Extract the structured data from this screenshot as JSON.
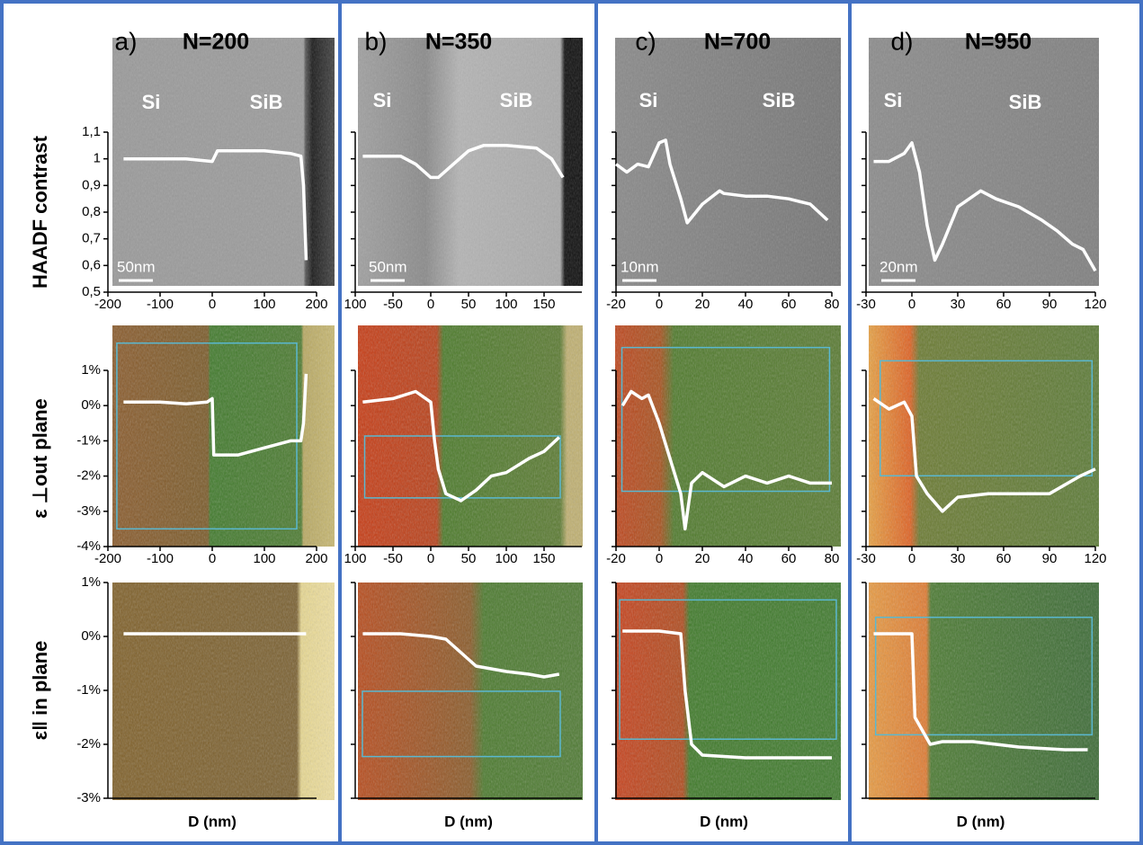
{
  "chart_data": [
    {
      "type": "line",
      "panel_label": "a)",
      "title": "N=200",
      "ylabel": "HAADF contrast",
      "annotations": [
        "Si",
        "SiB",
        "50nm"
      ],
      "color": "#ffffff",
      "xlim": [
        -200,
        200
      ],
      "xticks": [
        -200,
        -100,
        0,
        100,
        200
      ],
      "ylim": [
        0.5,
        1.1
      ],
      "yticks": [
        {
          "value": 0.5,
          "label": "0,5"
        },
        {
          "value": 0.6,
          "label": "0,6"
        },
        {
          "value": 0.7,
          "label": "0,7"
        },
        {
          "value": 0.8,
          "label": "0,8"
        },
        {
          "value": 0.9,
          "label": "0,9"
        },
        1,
        {
          "value": 1.1,
          "label": "1,1"
        }
      ],
      "x": [
        -170,
        -100,
        -50,
        0,
        10,
        50,
        100,
        150,
        170,
        175,
        180
      ],
      "values": [
        1.0,
        1.0,
        1.0,
        0.99,
        1.03,
        1.03,
        1.03,
        1.02,
        1.01,
        0.9,
        0.62
      ]
    },
    {
      "type": "line",
      "panel_label": "b)",
      "title": "N=350",
      "annotations": [
        "Si",
        "SiB",
        "50nm"
      ],
      "color": "#ffffff",
      "xlim": [
        -100,
        200
      ],
      "xticks": [
        {
          "value": -100,
          "label": "100"
        },
        -50,
        0,
        50,
        100,
        150
      ],
      "ylim": [
        0.5,
        1.1
      ],
      "yticks": [
        0.5,
        0.6,
        0.7,
        0.8,
        0.9,
        1,
        1.1
      ],
      "show_ytick_labels": false,
      "x": [
        -90,
        -40,
        -20,
        0,
        10,
        30,
        50,
        70,
        100,
        140,
        160,
        175
      ],
      "values": [
        1.01,
        1.01,
        0.98,
        0.93,
        0.93,
        0.98,
        1.03,
        1.05,
        1.05,
        1.04,
        1.0,
        0.93
      ]
    },
    {
      "type": "line",
      "panel_label": "c)",
      "title": "N=700",
      "annotations": [
        "Si",
        "SiB",
        "10nm"
      ],
      "color": "#ffffff",
      "xlim": [
        -20,
        80
      ],
      "xticks": [
        -20,
        0,
        20,
        40,
        60,
        80
      ],
      "ylim": [
        0.5,
        1.1
      ],
      "yticks": [
        0.5,
        0.6,
        0.7,
        0.8,
        0.9,
        1,
        1.1
      ],
      "show_ytick_labels": false,
      "x": [
        -20,
        -15,
        -10,
        -5,
        0,
        3,
        5,
        10,
        13,
        20,
        28,
        30,
        40,
        50,
        60,
        70,
        78
      ],
      "values": [
        0.98,
        0.95,
        0.98,
        0.97,
        1.06,
        1.07,
        0.98,
        0.85,
        0.76,
        0.83,
        0.88,
        0.87,
        0.86,
        0.86,
        0.85,
        0.83,
        0.77
      ]
    },
    {
      "type": "line",
      "panel_label": "d)",
      "title": "N=950",
      "annotations": [
        "Si",
        "SiB",
        "20nm"
      ],
      "color": "#ffffff",
      "xlim": [
        -30,
        120
      ],
      "xticks": [
        -30,
        0,
        30,
        60,
        90,
        120
      ],
      "ylim": [
        0.5,
        1.1
      ],
      "yticks": [
        0.5,
        0.6,
        0.7,
        0.8,
        0.9,
        1,
        1.1
      ],
      "show_ytick_labels": false,
      "x": [
        -25,
        -15,
        -5,
        0,
        5,
        10,
        15,
        20,
        30,
        45,
        55,
        70,
        85,
        95,
        105,
        112,
        120
      ],
      "values": [
        0.99,
        0.99,
        1.02,
        1.06,
        0.95,
        0.75,
        0.62,
        0.68,
        0.82,
        0.88,
        0.85,
        0.82,
        0.77,
        0.73,
        0.68,
        0.66,
        0.58
      ]
    },
    {
      "type": "line",
      "ylabel": "ε ⊥out plane",
      "color": "#ffffff",
      "xlim": [
        -200,
        200
      ],
      "xticks": [
        -200,
        -100,
        0,
        100,
        200
      ],
      "ylim": [
        -4,
        1
      ],
      "yticks": [
        {
          "value": -4,
          "label": "-4%"
        },
        {
          "value": -3,
          "label": "-3%"
        },
        {
          "value": -2,
          "label": "-2%"
        },
        {
          "value": -1,
          "label": "-1%"
        },
        {
          "value": 0,
          "label": "0%"
        },
        {
          "value": 1,
          "label": "1%"
        }
      ],
      "x": [
        -170,
        -100,
        -50,
        -10,
        0,
        3,
        50,
        100,
        150,
        170,
        175,
        180
      ],
      "values": [
        0.1,
        0.1,
        0.05,
        0.1,
        0.2,
        -1.4,
        -1.4,
        -1.2,
        -1.0,
        -1.0,
        -0.5,
        0.9
      ]
    },
    {
      "type": "line",
      "color": "#ffffff",
      "xlim": [
        -100,
        200
      ],
      "xticks": [
        {
          "value": -100,
          "label": "100"
        },
        -50,
        0,
        50,
        100,
        150
      ],
      "ylim": [
        -4,
        1
      ],
      "yticks": [
        -4,
        -3,
        -2,
        -1,
        0,
        1
      ],
      "show_ytick_labels": false,
      "x": [
        -90,
        -50,
        -20,
        0,
        5,
        10,
        20,
        40,
        60,
        80,
        100,
        130,
        150,
        170
      ],
      "values": [
        0.1,
        0.2,
        0.4,
        0.1,
        -1.0,
        -1.8,
        -2.5,
        -2.7,
        -2.4,
        -2.0,
        -1.9,
        -1.5,
        -1.3,
        -0.9
      ]
    },
    {
      "type": "line",
      "color": "#ffffff",
      "xlim": [
        -20,
        80
      ],
      "xticks": [
        -20,
        0,
        20,
        40,
        60,
        80
      ],
      "ylim": [
        -4,
        1
      ],
      "yticks": [
        -4,
        -3,
        -2,
        -1,
        0,
        1
      ],
      "show_ytick_labels": false,
      "x": [
        -17,
        -13,
        -8,
        -5,
        0,
        5,
        10,
        12,
        15,
        20,
        30,
        40,
        50,
        60,
        70,
        80
      ],
      "values": [
        0,
        0.4,
        0.2,
        0.3,
        -0.5,
        -1.5,
        -2.5,
        -3.5,
        -2.2,
        -1.9,
        -2.3,
        -2.0,
        -2.2,
        -2.0,
        -2.2,
        -2.2
      ]
    },
    {
      "type": "line",
      "color": "#ffffff",
      "xlim": [
        -30,
        120
      ],
      "xticks": [
        -30,
        0,
        30,
        60,
        90,
        120
      ],
      "ylim": [
        -4,
        1
      ],
      "yticks": [
        -4,
        -3,
        -2,
        -1,
        0,
        1
      ],
      "show_ytick_labels": false,
      "x": [
        -25,
        -15,
        -5,
        0,
        3,
        10,
        20,
        30,
        50,
        70,
        90,
        110,
        120
      ],
      "values": [
        0.2,
        -0.1,
        0.1,
        -0.3,
        -2.0,
        -2.5,
        -3.0,
        -2.6,
        -2.5,
        -2.5,
        -2.5,
        -2.0,
        -1.8
      ]
    },
    {
      "type": "line",
      "ylabel": "ε‖ in plane",
      "xlabel": "D (nm)",
      "color": "#ffffff",
      "xlim": [
        -200,
        200
      ],
      "ylim": [
        -3,
        1
      ],
      "yticks": [
        {
          "value": -3,
          "label": "-3%"
        },
        {
          "value": -2,
          "label": "-2%"
        },
        {
          "value": -1,
          "label": "-1%"
        },
        {
          "value": 0,
          "label": "0%"
        },
        {
          "value": 1,
          "label": "1%"
        }
      ],
      "x": [
        -170,
        -100,
        0,
        100,
        180
      ],
      "values": [
        0.05,
        0.05,
        0.05,
        0.05,
        0.05
      ]
    },
    {
      "type": "line",
      "xlabel": "D (nm)",
      "color": "#ffffff",
      "xlim": [
        -100,
        200
      ],
      "ylim": [
        -3,
        1
      ],
      "yticks": [
        -3,
        -2,
        -1,
        0,
        1
      ],
      "show_ytick_labels": false,
      "x": [
        -90,
        -40,
        0,
        20,
        40,
        60,
        80,
        100,
        130,
        150,
        170
      ],
      "values": [
        0.05,
        0.05,
        0.0,
        -0.05,
        -0.3,
        -0.55,
        -0.6,
        -0.65,
        -0.7,
        -0.75,
        -0.7
      ]
    },
    {
      "type": "line",
      "xlabel": "D (nm)",
      "color": "#ffffff",
      "xlim": [
        -20,
        80
      ],
      "ylim": [
        -3,
        1
      ],
      "yticks": [
        -3,
        -2,
        -1,
        0,
        1
      ],
      "show_ytick_labels": false,
      "x": [
        -17,
        0,
        10,
        12,
        15,
        20,
        40,
        60,
        80
      ],
      "values": [
        0.1,
        0.1,
        0.05,
        -1.0,
        -2.0,
        -2.2,
        -2.25,
        -2.25,
        -2.25
      ]
    },
    {
      "type": "line",
      "xlabel": "D (nm)",
      "color": "#ffffff",
      "xlim": [
        -30,
        120
      ],
      "ylim": [
        -3,
        1
      ],
      "yticks": [
        -3,
        -2,
        -1,
        0,
        1
      ],
      "show_ytick_labels": false,
      "x": [
        -25,
        -5,
        0,
        2,
        8,
        12,
        20,
        40,
        70,
        100,
        115
      ],
      "values": [
        0.05,
        0.05,
        0.05,
        -1.5,
        -1.8,
        -2.0,
        -1.95,
        -1.95,
        -2.05,
        -2.1,
        -2.1
      ]
    }
  ]
}
